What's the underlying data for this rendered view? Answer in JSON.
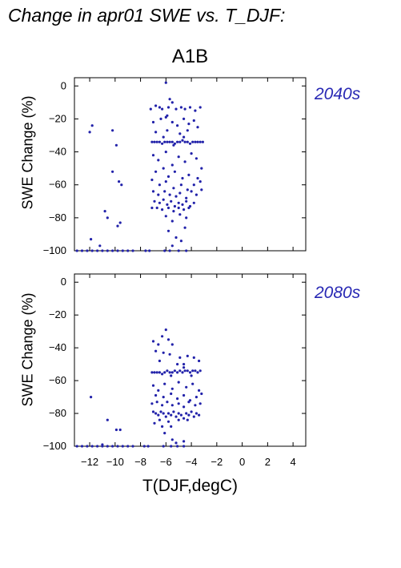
{
  "title": "Change in apr01 SWE vs. T_DJF:",
  "scenario": "A1B",
  "xlabel": "T(DJF,degC)",
  "colors": {
    "points": "#2222aa",
    "period_label": "#2828b4",
    "axis": "#000000"
  },
  "chart_data": [
    {
      "type": "scatter",
      "period": "2040s",
      "xlabel": "T(DJF,degC)",
      "ylabel": "SWE Change (%)",
      "xlim": [
        -13.2,
        5
      ],
      "ylim": [
        -100,
        5
      ],
      "xticks": [
        -12,
        -10,
        -8,
        -6,
        -4,
        -2,
        0,
        2,
        4
      ],
      "yticks": [
        0,
        -20,
        -40,
        -60,
        -80,
        -100
      ],
      "points": [
        [
          -12.0,
          -28
        ],
        [
          -11.8,
          -24
        ],
        [
          -10.2,
          -27
        ],
        [
          -9.9,
          -36
        ],
        [
          -10.2,
          -52
        ],
        [
          -9.7,
          -58
        ],
        [
          -9.5,
          -60
        ],
        [
          -10.8,
          -76
        ],
        [
          -10.6,
          -80
        ],
        [
          -9.8,
          -85
        ],
        [
          -9.6,
          -83
        ],
        [
          -11.9,
          -93
        ],
        [
          -11.2,
          -97
        ],
        [
          -13.0,
          -100
        ],
        [
          -12.6,
          -100
        ],
        [
          -12.2,
          -100
        ],
        [
          -11.8,
          -100
        ],
        [
          -11.4,
          -100
        ],
        [
          -11.0,
          -100
        ],
        [
          -10.6,
          -100
        ],
        [
          -10.2,
          -100
        ],
        [
          -9.8,
          -100
        ],
        [
          -9.4,
          -100
        ],
        [
          -9.0,
          -100
        ],
        [
          -8.6,
          -100
        ],
        [
          -7.6,
          -100
        ],
        [
          -7.3,
          -100
        ],
        [
          -6.1,
          -100
        ],
        [
          -5.7,
          -100
        ],
        [
          -5.0,
          -100
        ],
        [
          -4.4,
          -100
        ],
        [
          -6.0,
          2
        ],
        [
          -5.7,
          -8
        ],
        [
          -5.5,
          -10
        ],
        [
          -5.9,
          -18
        ],
        [
          -7.2,
          -14
        ],
        [
          -6.8,
          -12
        ],
        [
          -6.5,
          -13
        ],
        [
          -6.3,
          -14
        ],
        [
          -5.8,
          -13
        ],
        [
          -5.2,
          -14
        ],
        [
          -4.8,
          -13
        ],
        [
          -4.5,
          -14
        ],
        [
          -4.1,
          -13
        ],
        [
          -3.7,
          -15
        ],
        [
          -3.3,
          -13
        ],
        [
          -7.0,
          -22
        ],
        [
          -6.4,
          -20
        ],
        [
          -6.0,
          -19
        ],
        [
          -5.5,
          -22
        ],
        [
          -5.1,
          -24
        ],
        [
          -4.6,
          -20
        ],
        [
          -4.2,
          -23
        ],
        [
          -3.8,
          -21
        ],
        [
          -3.5,
          -25
        ],
        [
          -6.8,
          -28
        ],
        [
          -5.9,
          -27
        ],
        [
          -4.9,
          -29
        ],
        [
          -4.3,
          -27
        ],
        [
          -7.1,
          -34
        ],
        [
          -6.9,
          -34
        ],
        [
          -6.7,
          -34
        ],
        [
          -6.5,
          -34
        ],
        [
          -6.3,
          -35
        ],
        [
          -6.1,
          -34
        ],
        [
          -5.9,
          -34
        ],
        [
          -5.7,
          -34
        ],
        [
          -5.5,
          -34
        ],
        [
          -5.3,
          -35
        ],
        [
          -5.1,
          -34
        ],
        [
          -4.9,
          -34
        ],
        [
          -4.7,
          -33
        ],
        [
          -4.5,
          -34
        ],
        [
          -4.3,
          -34
        ],
        [
          -4.1,
          -35
        ],
        [
          -3.9,
          -34
        ],
        [
          -3.7,
          -34
        ],
        [
          -3.5,
          -34
        ],
        [
          -3.3,
          -34
        ],
        [
          -3.1,
          -34
        ],
        [
          -4.6,
          -31
        ],
        [
          -6.2,
          -31
        ],
        [
          -5.4,
          -36
        ],
        [
          -7.0,
          -42
        ],
        [
          -6.6,
          -45
        ],
        [
          -6.0,
          -40
        ],
        [
          -5.5,
          -48
        ],
        [
          -5.0,
          -43
        ],
        [
          -4.5,
          -46
        ],
        [
          -4.0,
          -41
        ],
        [
          -3.6,
          -44
        ],
        [
          -3.2,
          -50
        ],
        [
          -6.8,
          -52
        ],
        [
          -6.2,
          -50
        ],
        [
          -5.8,
          -55
        ],
        [
          -5.3,
          -52
        ],
        [
          -4.7,
          -56
        ],
        [
          -4.2,
          -54
        ],
        [
          -3.5,
          -56
        ],
        [
          -7.1,
          -57
        ],
        [
          -6.5,
          -60
        ],
        [
          -6.0,
          -58
        ],
        [
          -5.4,
          -62
        ],
        [
          -4.8,
          -60
        ],
        [
          -4.3,
          -63
        ],
        [
          -3.8,
          -60
        ],
        [
          -3.3,
          -58
        ],
        [
          -7.0,
          -64
        ],
        [
          -6.6,
          -66
        ],
        [
          -6.1,
          -64
        ],
        [
          -5.7,
          -66
        ],
        [
          -5.2,
          -67
        ],
        [
          -4.9,
          -65
        ],
        [
          -4.4,
          -68
        ],
        [
          -4.0,
          -64
        ],
        [
          -3.6,
          -66
        ],
        [
          -3.2,
          -63
        ],
        [
          -6.9,
          -70
        ],
        [
          -6.5,
          -71
        ],
        [
          -6.2,
          -69
        ],
        [
          -5.9,
          -72
        ],
        [
          -5.6,
          -70
        ],
        [
          -5.3,
          -73
        ],
        [
          -5.0,
          -71
        ],
        [
          -4.7,
          -72
        ],
        [
          -4.4,
          -70
        ],
        [
          -4.1,
          -73
        ],
        [
          -3.8,
          -71
        ],
        [
          -7.1,
          -74
        ],
        [
          -6.7,
          -74
        ],
        [
          -6.3,
          -75
        ],
        [
          -5.8,
          -74
        ],
        [
          -5.4,
          -76
        ],
        [
          -5.0,
          -74
        ],
        [
          -4.6,
          -75
        ],
        [
          -4.2,
          -74
        ],
        [
          -6.0,
          -79
        ],
        [
          -5.5,
          -82
        ],
        [
          -4.9,
          -78
        ],
        [
          -4.4,
          -80
        ],
        [
          -5.8,
          -88
        ],
        [
          -5.2,
          -92
        ],
        [
          -4.5,
          -86
        ],
        [
          -4.8,
          -94
        ],
        [
          -5.5,
          -97
        ]
      ]
    },
    {
      "type": "scatter",
      "period": "2080s",
      "xlabel": "T(DJF,degC)",
      "ylabel": "SWE Change (%)",
      "xlim": [
        -13.2,
        5
      ],
      "ylim": [
        -100,
        5
      ],
      "xticks": [
        -12,
        -10,
        -8,
        -6,
        -4,
        -2,
        0,
        2,
        4
      ],
      "yticks": [
        0,
        -20,
        -40,
        -60,
        -80,
        -100
      ],
      "points": [
        [
          -11.9,
          -70
        ],
        [
          -10.6,
          -84
        ],
        [
          -9.9,
          -90
        ],
        [
          -9.6,
          -90
        ],
        [
          -11.0,
          -99
        ],
        [
          -13.0,
          -100
        ],
        [
          -12.6,
          -100
        ],
        [
          -12.2,
          -100
        ],
        [
          -11.8,
          -100
        ],
        [
          -11.4,
          -100
        ],
        [
          -11.0,
          -100
        ],
        [
          -10.6,
          -100
        ],
        [
          -10.2,
          -100
        ],
        [
          -9.8,
          -100
        ],
        [
          -9.4,
          -100
        ],
        [
          -9.0,
          -100
        ],
        [
          -8.6,
          -100
        ],
        [
          -7.7,
          -100
        ],
        [
          -7.4,
          -100
        ],
        [
          -6.2,
          -100
        ],
        [
          -5.6,
          -100
        ],
        [
          -5.1,
          -100
        ],
        [
          -4.6,
          -100
        ],
        [
          -6.0,
          -29
        ],
        [
          -6.3,
          -33
        ],
        [
          -5.8,
          -35
        ],
        [
          -7.0,
          -36
        ],
        [
          -6.6,
          -38
        ],
        [
          -5.5,
          -38
        ],
        [
          -6.8,
          -42
        ],
        [
          -6.2,
          -43
        ],
        [
          -5.7,
          -44
        ],
        [
          -4.9,
          -46
        ],
        [
          -4.3,
          -45
        ],
        [
          -3.8,
          -46
        ],
        [
          -3.4,
          -48
        ],
        [
          -6.5,
          -48
        ],
        [
          -5.1,
          -50
        ],
        [
          -4.6,
          -50
        ],
        [
          -7.1,
          -55
        ],
        [
          -6.9,
          -55
        ],
        [
          -6.7,
          -55
        ],
        [
          -6.5,
          -55
        ],
        [
          -6.3,
          -56
        ],
        [
          -6.1,
          -55
        ],
        [
          -5.9,
          -54
        ],
        [
          -5.7,
          -55
        ],
        [
          -5.5,
          -55
        ],
        [
          -5.3,
          -54
        ],
        [
          -5.1,
          -55
        ],
        [
          -4.9,
          -54
        ],
        [
          -4.7,
          -55
        ],
        [
          -4.5,
          -54
        ],
        [
          -4.3,
          -54
        ],
        [
          -4.1,
          -55
        ],
        [
          -3.9,
          -54
        ],
        [
          -3.7,
          -54
        ],
        [
          -3.5,
          -55
        ],
        [
          -3.3,
          -54
        ],
        [
          -4.6,
          -52
        ],
        [
          -5.6,
          -57
        ],
        [
          -4.0,
          -57
        ],
        [
          -7.0,
          -63
        ],
        [
          -6.6,
          -66
        ],
        [
          -6.1,
          -62
        ],
        [
          -5.5,
          -65
        ],
        [
          -5.0,
          -61
        ],
        [
          -4.4,
          -64
        ],
        [
          -3.9,
          -62
        ],
        [
          -3.4,
          -66
        ],
        [
          -6.8,
          -69
        ],
        [
          -6.2,
          -70
        ],
        [
          -5.6,
          -68
        ],
        [
          -5.1,
          -71
        ],
        [
          -4.6,
          -69
        ],
        [
          -4.1,
          -72
        ],
        [
          -3.6,
          -70
        ],
        [
          -3.2,
          -68
        ],
        [
          -7.1,
          -74
        ],
        [
          -6.7,
          -73
        ],
        [
          -6.3,
          -75
        ],
        [
          -5.9,
          -73
        ],
        [
          -5.5,
          -75
        ],
        [
          -5.0,
          -74
        ],
        [
          -4.6,
          -76
        ],
        [
          -4.2,
          -73
        ],
        [
          -3.7,
          -75
        ],
        [
          -3.3,
          -74
        ],
        [
          -7.0,
          -79
        ],
        [
          -6.8,
          -80
        ],
        [
          -6.6,
          -81
        ],
        [
          -6.4,
          -79
        ],
        [
          -6.2,
          -80
        ],
        [
          -6.0,
          -82
        ],
        [
          -5.8,
          -80
        ],
        [
          -5.6,
          -81
        ],
        [
          -5.4,
          -79
        ],
        [
          -5.2,
          -82
        ],
        [
          -5.0,
          -80
        ],
        [
          -4.8,
          -81
        ],
        [
          -4.6,
          -83
        ],
        [
          -4.4,
          -80
        ],
        [
          -4.2,
          -81
        ],
        [
          -4.0,
          -79
        ],
        [
          -3.8,
          -82
        ],
        [
          -3.6,
          -80
        ],
        [
          -3.4,
          -81
        ],
        [
          -6.5,
          -84
        ],
        [
          -5.8,
          -85
        ],
        [
          -5.0,
          -84
        ],
        [
          -4.3,
          -84
        ],
        [
          -6.9,
          -86
        ],
        [
          -6.3,
          -88
        ],
        [
          -5.6,
          -88
        ],
        [
          -6.1,
          -92
        ],
        [
          -5.5,
          -96
        ],
        [
          -5.2,
          -98
        ],
        [
          -4.6,
          -97
        ]
      ]
    }
  ]
}
